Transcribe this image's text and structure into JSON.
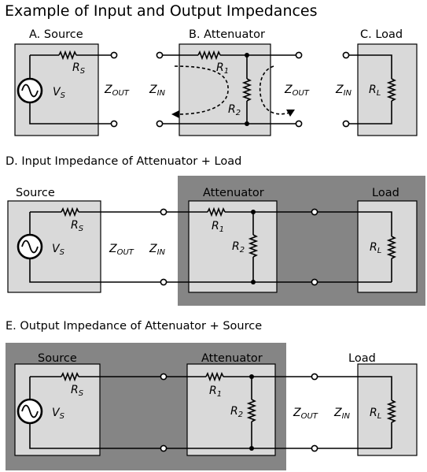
{
  "title": "Example of Input and Output Impedances",
  "colors": {
    "box_fill": "#d9d9d9",
    "dark_fill": "#858585",
    "line": "#000000"
  },
  "panel_a": {
    "heading": "A. Source"
  },
  "panel_b": {
    "heading": "B. Attenuator"
  },
  "panel_c": {
    "heading": "C. Load"
  },
  "section_d": {
    "heading": "D. Input Impedance of Attenuator + Load"
  },
  "section_e": {
    "heading": "E. Output Impedance of Attenuator + Source"
  },
  "box_labels": {
    "source": "Source",
    "attenuator": "Attenuator",
    "load": "Load"
  },
  "symbols": {
    "rs_main": "R",
    "rs_sub": "S",
    "vs_main": "V",
    "vs_sub": "S",
    "r1_main": "R",
    "r1_sub": "1",
    "r2_main": "R",
    "r2_sub": "2",
    "rl_main": "R",
    "rl_sub": "L",
    "zout_main": "Z",
    "zout_sub": "OUT",
    "zin_main": "Z",
    "zin_sub": "IN"
  },
  "icons": {
    "ac_source": "sine-wave-source-icon",
    "resistor": "resistor-zigzag-icon",
    "terminal": "open-circle-terminal-icon"
  }
}
